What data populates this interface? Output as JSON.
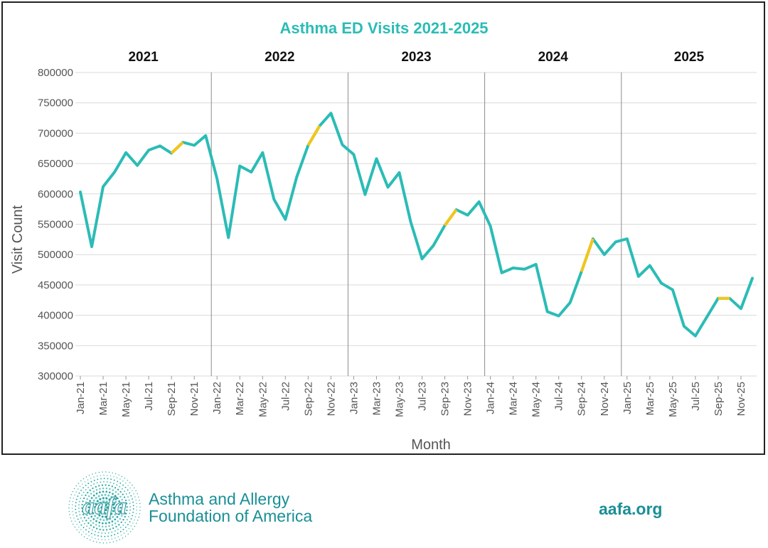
{
  "chart_data": {
    "type": "line",
    "title": "Asthma ED Visits 2021-2025",
    "xlabel": "Month",
    "ylabel": "Visit Count",
    "ylim": [
      300000,
      800000
    ],
    "yticks": [
      300000,
      350000,
      400000,
      450000,
      500000,
      550000,
      600000,
      650000,
      700000,
      750000,
      800000
    ],
    "ytick_labels": [
      "300000",
      "350000",
      "400000",
      "450000",
      "500000",
      "550000",
      "600000",
      "650000",
      "700000",
      "750000",
      "800000"
    ],
    "grid": true,
    "legend": "none",
    "colors": {
      "line": "#2bbcb6",
      "highlight": "#f5c518",
      "title": "#2bbcb6",
      "grid": "#d9d9d9",
      "divider": "#8c8c8c"
    },
    "years": [
      "2021",
      "2022",
      "2023",
      "2024",
      "2025"
    ],
    "months": [
      "Jan-21",
      "Feb-21",
      "Mar-21",
      "Apr-21",
      "May-21",
      "Jun-21",
      "Jul-21",
      "Aug-21",
      "Sep-21",
      "Oct-21",
      "Nov-21",
      "Dec-21",
      "Jan-22",
      "Feb-22",
      "Mar-22",
      "Apr-22",
      "May-22",
      "Jun-22",
      "Jul-22",
      "Aug-22",
      "Sep-22",
      "Oct-22",
      "Nov-22",
      "Dec-22",
      "Jan-23",
      "Feb-23",
      "Mar-23",
      "Apr-23",
      "May-23",
      "Jun-23",
      "Jul-23",
      "Aug-23",
      "Sep-23",
      "Oct-23",
      "Nov-23",
      "Dec-23",
      "Jan-24",
      "Feb-24",
      "Mar-24",
      "Apr-24",
      "May-24",
      "Jun-24",
      "Jul-24",
      "Aug-24",
      "Sep-24",
      "Oct-24",
      "Nov-24",
      "Dec-24",
      "Jan-25",
      "Feb-25",
      "Mar-25",
      "Apr-25",
      "May-25",
      "Jun-25",
      "Jul-25",
      "Aug-25",
      "Sep-25",
      "Oct-25",
      "Nov-25",
      "Dec-25"
    ],
    "xtick_labels": [
      "Jan-21",
      "Mar-21",
      "May-21",
      "Jul-21",
      "Sep-21",
      "Nov-21",
      "Jan-22",
      "Mar-22",
      "May-22",
      "Jul-22",
      "Sep-22",
      "Nov-22",
      "Jan-23",
      "Mar-23",
      "May-23",
      "Jul-23",
      "Sep-23",
      "Nov-23",
      "Jan-24",
      "Mar-24",
      "May-24",
      "Jul-24",
      "Sep-24",
      "Nov-24",
      "Jan-25",
      "Mar-25",
      "May-25",
      "Jul-25",
      "Sep-25",
      "Nov-25"
    ],
    "series": [
      {
        "values": [
          603000,
          513000,
          612000,
          636000,
          668000,
          647000,
          672000,
          679000,
          667000,
          685000,
          680000,
          696000,
          625000,
          528000,
          646000,
          636000,
          668000,
          591000,
          558000,
          628000,
          680000,
          712000,
          733000,
          681000,
          665000,
          599000,
          658000,
          611000,
          635000,
          554000,
          493000,
          515000,
          548000,
          574000,
          565000,
          587000,
          547000,
          470000,
          478000,
          476000,
          484000,
          406000,
          399000,
          421000,
          472000,
          526000,
          500000,
          521000,
          526000,
          464000,
          482000,
          453000,
          442000,
          382000,
          366000,
          397000,
          428000,
          428000,
          411000,
          461000
        ],
        "highlight_segments": [
          [
            8,
            9
          ],
          [
            20,
            21
          ],
          [
            32,
            33
          ],
          [
            44,
            45
          ],
          [
            56,
            57
          ]
        ]
      }
    ]
  },
  "footer": {
    "logo_text": "aafa",
    "org_name_line1": "Asthma and Allergy",
    "org_name_line2": "Foundation of America",
    "website": "aafa.org"
  }
}
